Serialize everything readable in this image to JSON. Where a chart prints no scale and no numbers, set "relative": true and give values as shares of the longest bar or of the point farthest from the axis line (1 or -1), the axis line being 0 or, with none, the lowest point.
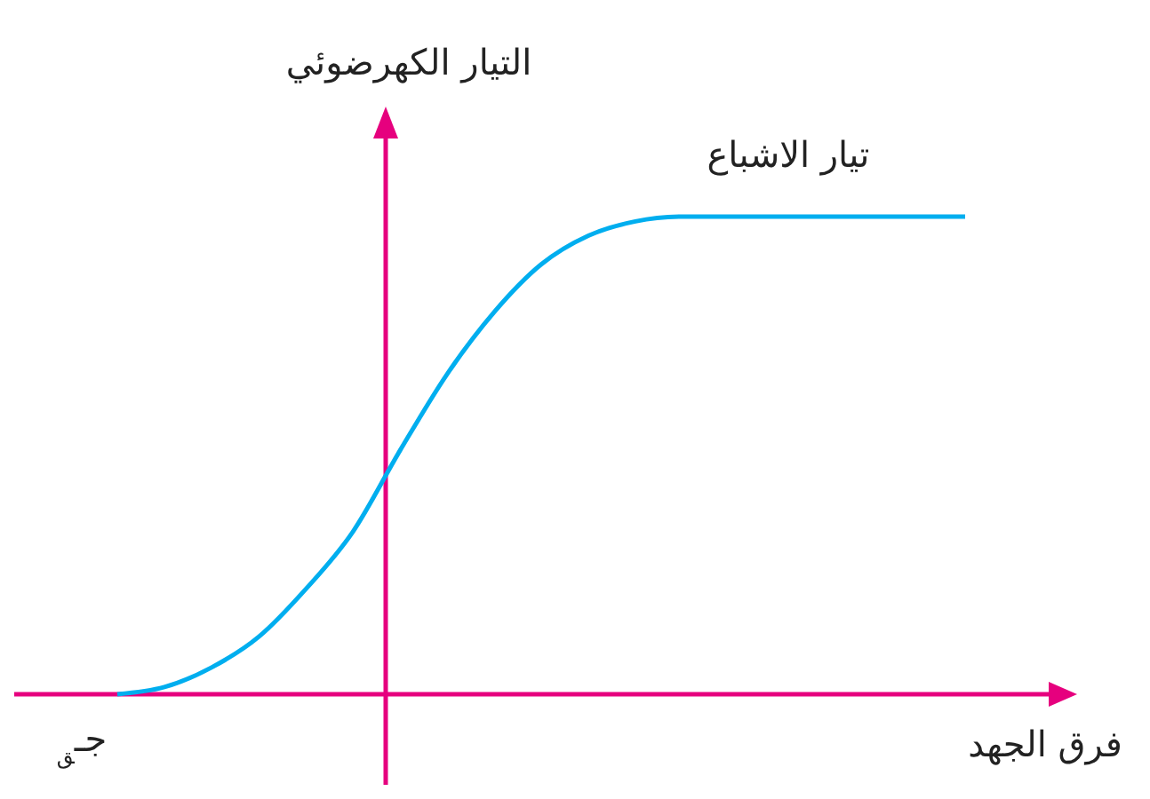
{
  "chart_data": {
    "type": "line",
    "relative": true,
    "xlabel": "فرق الجهد",
    "ylabel": "التيار الكهرضوئي",
    "categories": [
      null,
      null,
      null,
      null,
      null,
      null,
      null,
      null,
      null,
      null,
      null,
      null,
      null,
      null,
      null,
      null,
      null,
      null,
      null
    ],
    "series": [
      {
        "color": "#00aeef",
        "values": [
          0,
          0.015,
          0.056,
          0.12,
          0.22,
          0.34,
          0.51,
          0.67,
          0.8,
          0.9,
          0.96,
          0.99,
          1,
          1,
          1,
          1,
          1,
          1,
          1
        ]
      }
    ],
    "annotations": [
      {
        "text": "تيار الاشباع",
        "y": 1
      },
      "جـ$_{ق}$"
    ],
    "marker": "none",
    "line_style": "solid"
  }
}
